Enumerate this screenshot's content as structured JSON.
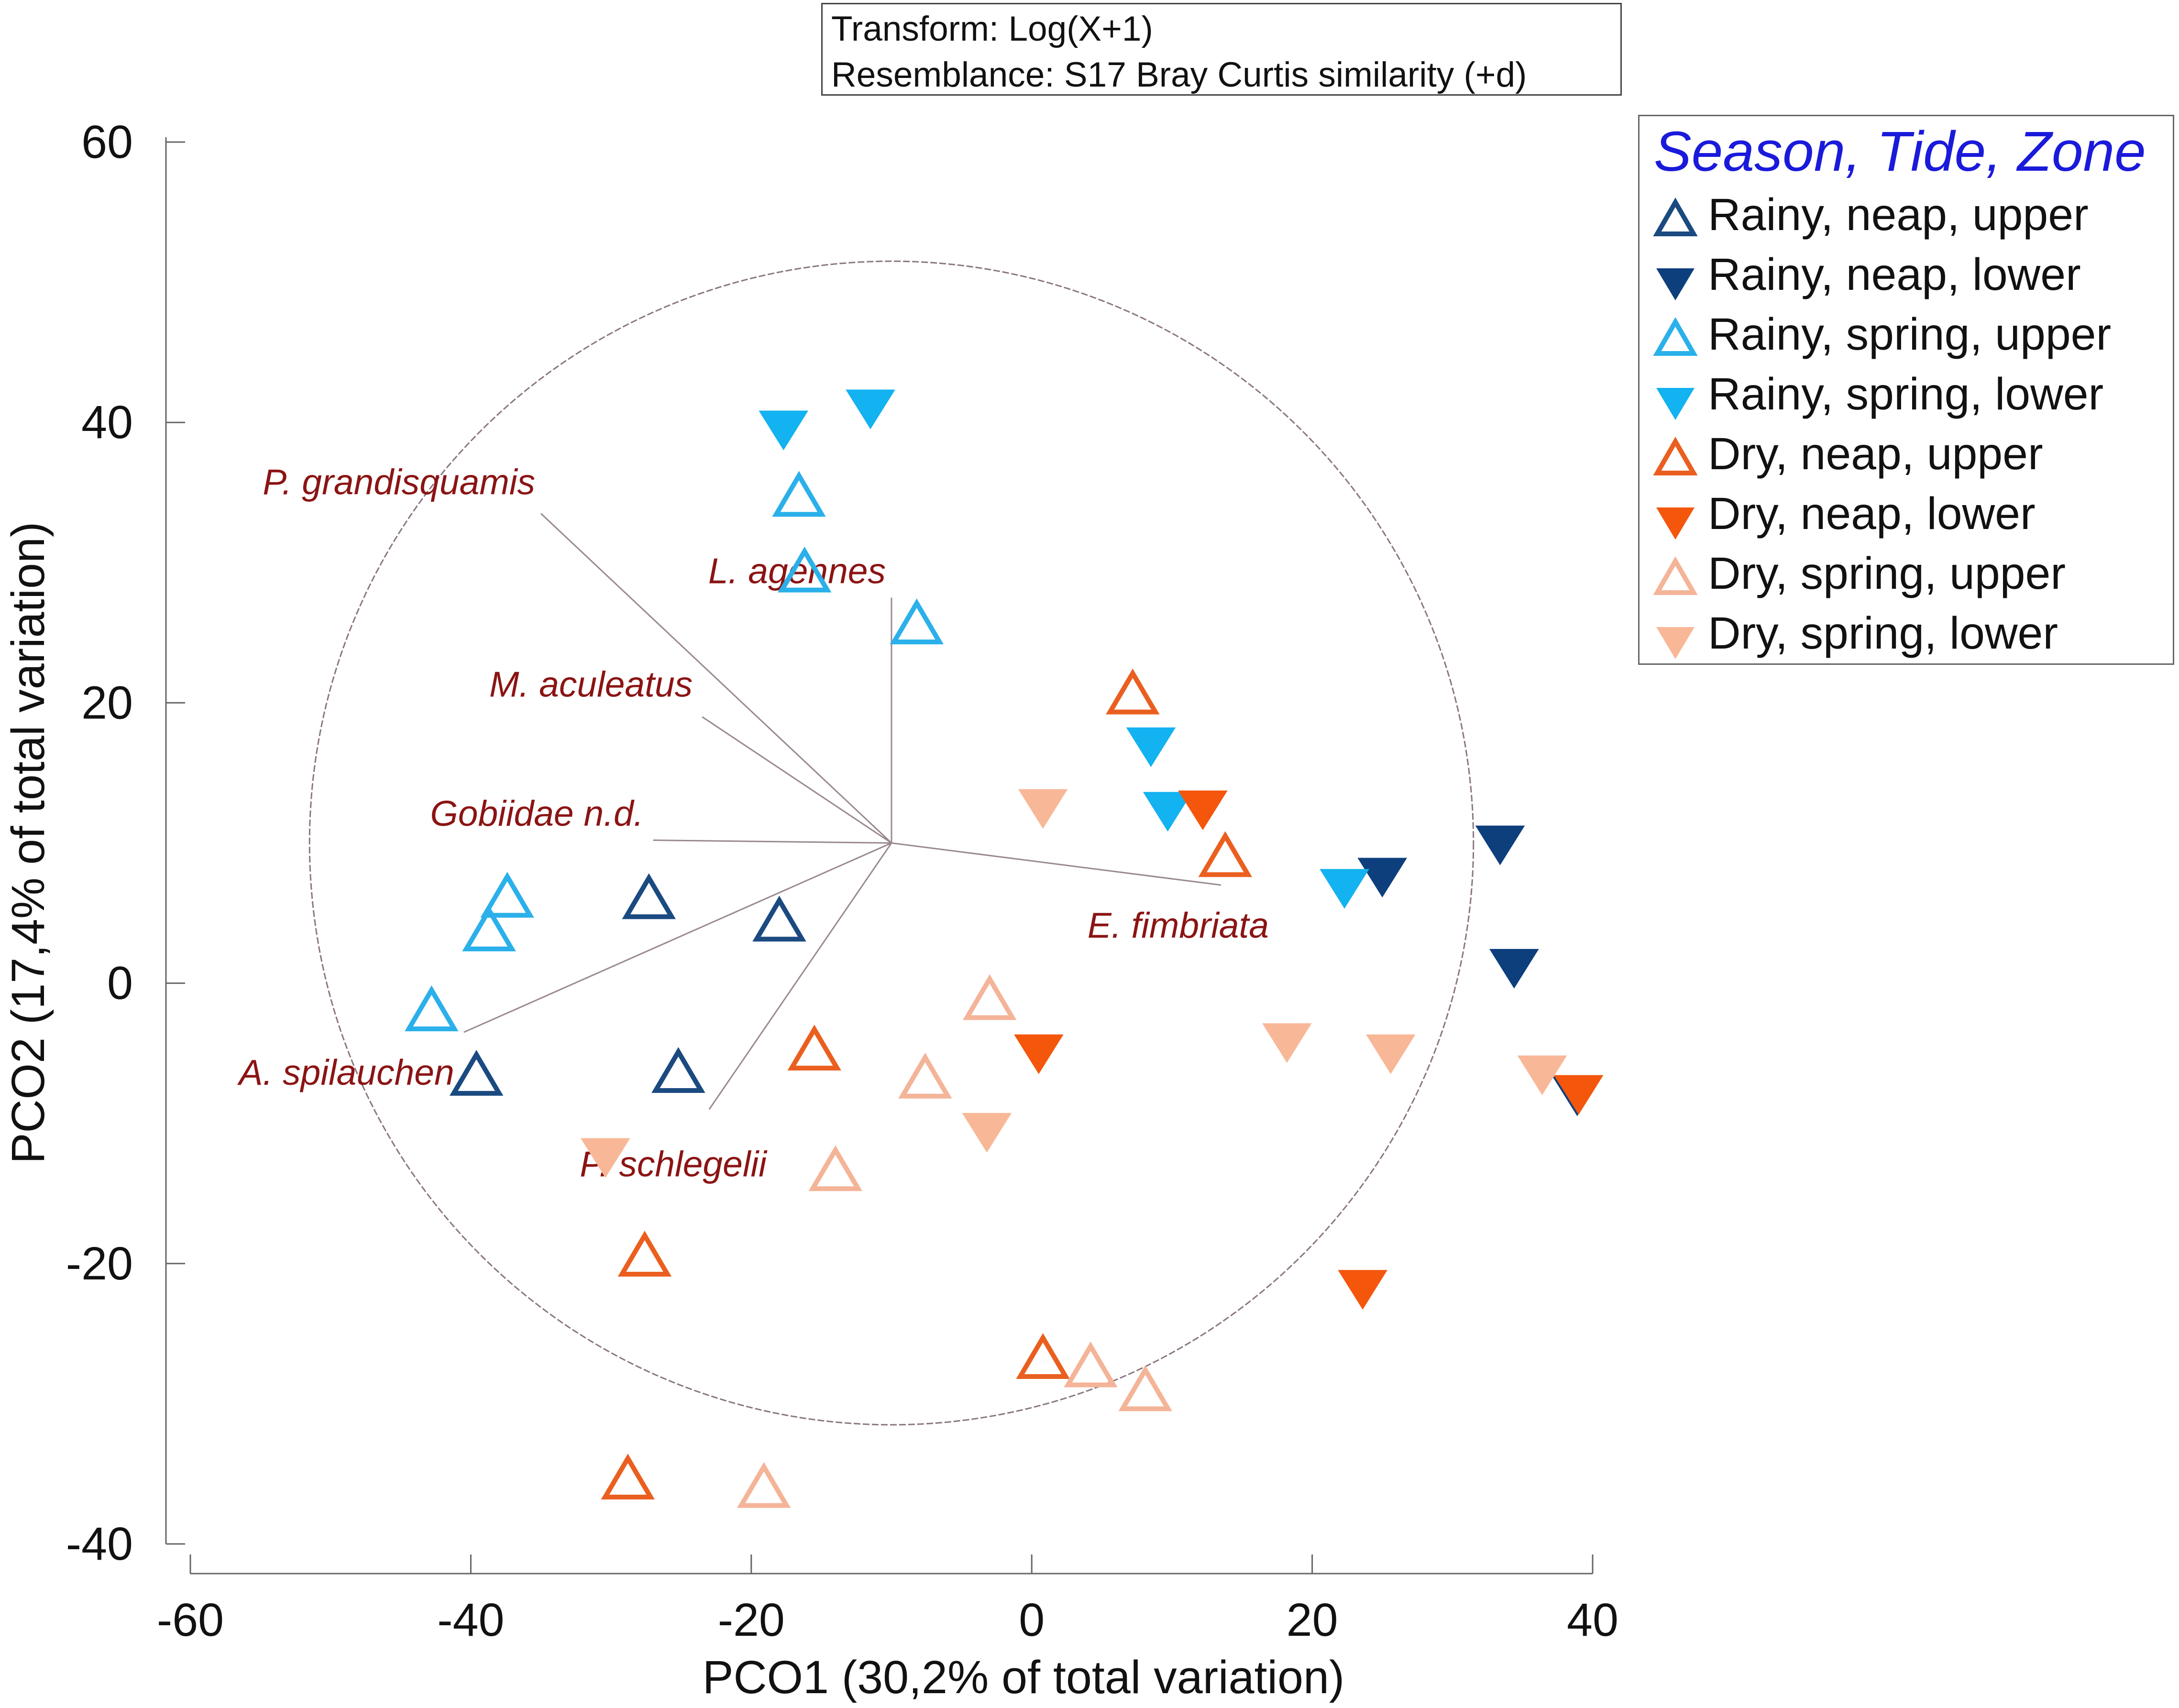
{
  "info": {
    "transform": "Transform: Log(X+1)",
    "resemblance": "Resemblance: S17 Bray Curtis similarity (+d)"
  },
  "legend": {
    "title": "Season, Tide, Zone",
    "items": [
      {
        "label": "Rainy, neap, upper",
        "shape": "up-open",
        "color": "#1a4a80"
      },
      {
        "label": "Rainy, neap, lower",
        "shape": "down-filled",
        "color": "#0e3f7d"
      },
      {
        "label": "Rainy, spring, upper",
        "shape": "up-open",
        "color": "#2ab0ea"
      },
      {
        "label": "Rainy, spring, lower",
        "shape": "down-filled",
        "color": "#13b2f0"
      },
      {
        "label": "Dry, neap, upper",
        "shape": "up-open",
        "color": "#ea5f1f"
      },
      {
        "label": "Dry, neap, lower",
        "shape": "down-filled",
        "color": "#f4560c"
      },
      {
        "label": "Dry, spring, upper",
        "shape": "up-open",
        "color": "#f4b498"
      },
      {
        "label": "Dry, spring, lower",
        "shape": "down-filled",
        "color": "#f8b898"
      }
    ]
  },
  "chart_data": {
    "type": "scatter",
    "xlabel": "PCO1 (30,2% of total variation)",
    "ylabel": "PCO2 (17,4% of total variation)",
    "xlim": [
      -60,
      40
    ],
    "ylim": [
      -40,
      60
    ],
    "xticks": [
      -60,
      -40,
      -20,
      0,
      20,
      40
    ],
    "yticks": [
      -40,
      -20,
      0,
      20,
      40,
      60
    ],
    "grid": false,
    "circle": {
      "center": [
        -10,
        10
      ],
      "radius": 41.5
    },
    "vectors": [
      {
        "label": "P. grandisquamis",
        "x": -35,
        "y": 33.5
      },
      {
        "label": "L. agennes",
        "x": -10,
        "y": 27.5
      },
      {
        "label": "M. aculeatus",
        "x": -23.5,
        "y": 19
      },
      {
        "label": "Gobiidae n.d.",
        "x": -27,
        "y": 10.2
      },
      {
        "label": "E. fimbriata",
        "x": 13.5,
        "y": 7
      },
      {
        "label": "A. spilauchen",
        "x": -40.5,
        "y": -3.5
      },
      {
        "label": "P. schlegelii",
        "x": -23,
        "y": -9
      }
    ],
    "series": [
      {
        "name": "Rainy, neap, upper",
        "marker": "up-open",
        "color": "#1a4a80",
        "points": [
          [
            -39.6,
            -6.8
          ],
          [
            -27.3,
            5.8
          ],
          [
            -18,
            4.2
          ],
          [
            -25.2,
            -6.6
          ]
        ]
      },
      {
        "name": "Rainy, neap, lower",
        "marker": "down-filled",
        "color": "#0e3f7d",
        "points": [
          [
            25,
            7.8
          ],
          [
            33.4,
            10.1
          ],
          [
            34.4,
            1.3
          ],
          [
            38.9,
            -7.8
          ]
        ]
      },
      {
        "name": "Rainy, spring, upper",
        "marker": "up-open",
        "color": "#2ab0ea",
        "points": [
          [
            -16.6,
            34.5
          ],
          [
            -16.2,
            29.1
          ],
          [
            -8.2,
            25.4
          ],
          [
            -37.4,
            5.9
          ],
          [
            -38.7,
            3.5
          ],
          [
            -42.8,
            -2.2
          ]
        ]
      },
      {
        "name": "Rainy, spring, lower",
        "marker": "down-filled",
        "color": "#13b2f0",
        "points": [
          [
            -17.7,
            39.7
          ],
          [
            -11.5,
            41.2
          ],
          [
            8.5,
            17.1
          ],
          [
            9.7,
            12.5
          ],
          [
            22.3,
            7
          ]
        ]
      },
      {
        "name": "Dry, neap, upper",
        "marker": "up-open",
        "color": "#ea5f1f",
        "points": [
          [
            7.2,
            20.4
          ],
          [
            13.8,
            8.8
          ],
          [
            -15.5,
            -5
          ],
          [
            -27.6,
            -19.7
          ],
          [
            0.8,
            -27
          ],
          [
            -28.8,
            -35.6
          ]
        ]
      },
      {
        "name": "Dry, neap, lower",
        "marker": "down-filled",
        "color": "#f4560c",
        "points": [
          [
            12.2,
            12.6
          ],
          [
            0.5,
            -4.8
          ],
          [
            23.6,
            -21.6
          ],
          [
            39,
            -7.7
          ]
        ]
      },
      {
        "name": "Dry, spring, upper",
        "marker": "up-open",
        "color": "#f4b498",
        "points": [
          [
            -3,
            -1.4
          ],
          [
            -7.6,
            -7
          ],
          [
            -14,
            -13.6
          ],
          [
            4.2,
            -27.6
          ],
          [
            8.1,
            -29.3
          ],
          [
            -19.1,
            -36.2
          ]
        ]
      },
      {
        "name": "Dry, spring, lower",
        "marker": "down-filled",
        "color": "#f8b898",
        "points": [
          [
            0.8,
            12.7
          ],
          [
            -3.2,
            -10.4
          ],
          [
            18.2,
            -4
          ],
          [
            25.6,
            -4.8
          ],
          [
            36.4,
            -6.3
          ],
          [
            -30.4,
            -12.2
          ]
        ]
      }
    ]
  }
}
